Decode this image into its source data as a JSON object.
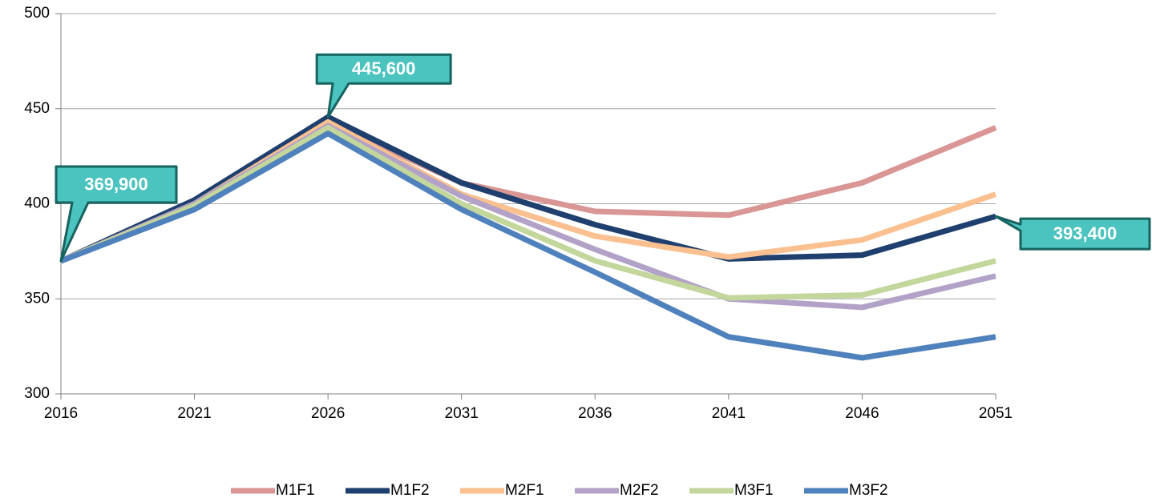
{
  "chart_data": {
    "type": "line",
    "x": [
      2016,
      2021,
      2026,
      2031,
      2036,
      2041,
      2046,
      2051
    ],
    "xlim": [
      2016,
      2051
    ],
    "xticks": [
      2016,
      2021,
      2026,
      2031,
      2036,
      2041,
      2046,
      2051
    ],
    "ylim": [
      300,
      500
    ],
    "yticks": [
      300,
      350,
      400,
      450,
      500
    ],
    "grid": true,
    "legend": "bottom",
    "series": [
      {
        "name": "M1F1",
        "color": "#d99694",
        "values": [
          369.9,
          401,
          443,
          411,
          396,
          394,
          411,
          440
        ]
      },
      {
        "name": "M1F2",
        "color": "#1f3f6e",
        "values": [
          369.9,
          402,
          445.6,
          411,
          389,
          371,
          373,
          393.4
        ]
      },
      {
        "name": "M2F1",
        "color": "#fac090",
        "values": [
          369.9,
          400,
          443,
          405,
          383,
          372,
          381,
          405
        ]
      },
      {
        "name": "M2F2",
        "color": "#b3a2c7",
        "values": [
          369.9,
          400,
          441,
          404,
          376,
          350,
          345.5,
          362
        ]
      },
      {
        "name": "M3F1",
        "color": "#c3d69b",
        "values": [
          369.9,
          399,
          440,
          400,
          370,
          350.5,
          352,
          370
        ]
      },
      {
        "name": "M3F2",
        "color": "#4f81bd",
        "values": [
          369.9,
          397,
          437,
          397,
          364,
          330,
          319,
          330
        ]
      }
    ],
    "annotations": [
      {
        "text": "369,900",
        "x": 2016,
        "y": 369.9
      },
      {
        "text": "445,600",
        "x": 2026,
        "y": 445.6
      },
      {
        "text": "393,400",
        "x": 2051,
        "y": 393.4
      }
    ]
  }
}
